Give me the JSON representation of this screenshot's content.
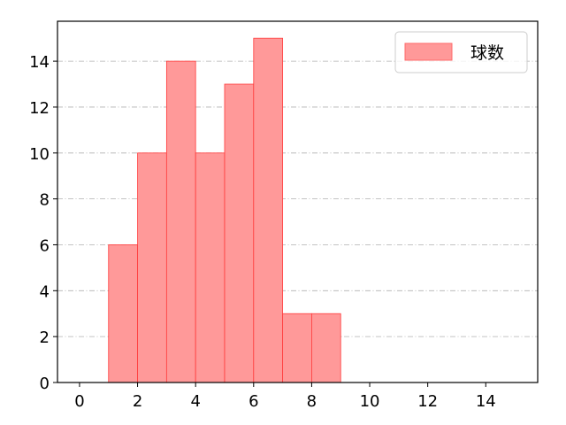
{
  "chart_data": {
    "type": "bar",
    "histogram": true,
    "bins": [
      [
        1,
        2
      ],
      [
        2,
        3
      ],
      [
        3,
        4
      ],
      [
        4,
        5
      ],
      [
        5,
        6
      ],
      [
        6,
        7
      ],
      [
        7,
        8
      ],
      [
        8,
        9
      ]
    ],
    "series": [
      {
        "name": "球数",
        "values": [
          6,
          10,
          14,
          10,
          13,
          15,
          3,
          3
        ]
      }
    ],
    "xlim": [
      -0.76,
      15.79
    ],
    "ylim": [
      0,
      15.74
    ],
    "xticks": [
      0,
      2,
      4,
      6,
      8,
      10,
      12,
      14
    ],
    "yticks": [
      0,
      2,
      4,
      6,
      8,
      10,
      12,
      14
    ],
    "xlabel": "",
    "ylabel": "",
    "title": "",
    "grid": "y-dashdot",
    "legend": "top-right",
    "colors": {
      "bar_fill": "#ff9999",
      "bar_edge": "#ff3b3b",
      "grid": "#b0b0b0"
    }
  }
}
